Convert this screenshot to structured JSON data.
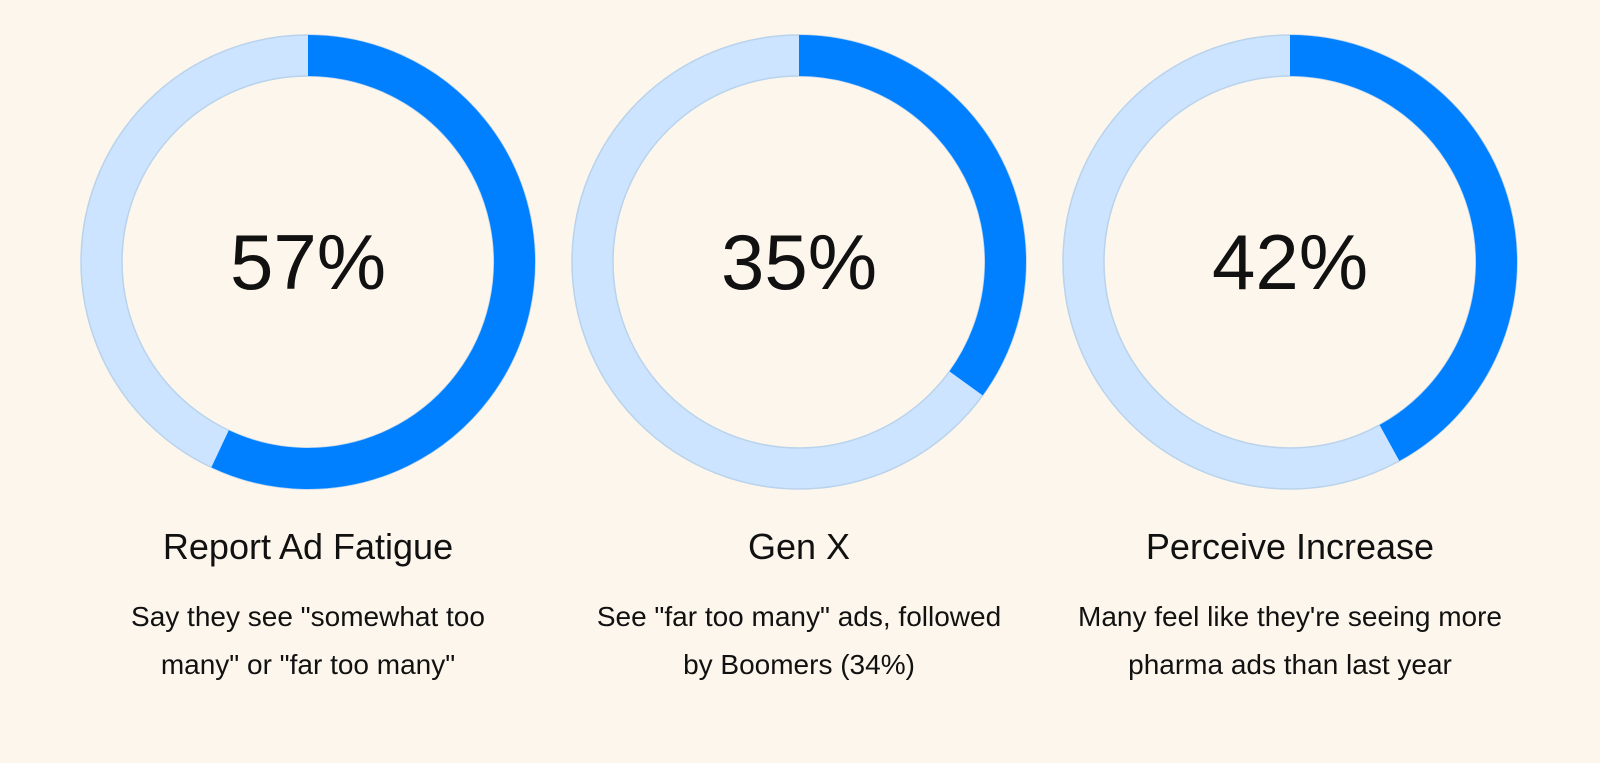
{
  "chart_data": [
    {
      "type": "donut",
      "values": [
        57
      ],
      "value_labels": [
        "57%"
      ],
      "title": "Report Ad Fatigue",
      "subtitle": "Say they see \"somewhat too many\" or \"far too many\"",
      "color": "#0080ff",
      "track_color": "#cce4ff"
    },
    {
      "type": "donut",
      "values": [
        35
      ],
      "value_labels": [
        "35%"
      ],
      "title": "Gen X",
      "subtitle": "See \"far too many\" ads, followed by Boomers (34%)",
      "color": "#0080ff",
      "track_color": "#cce4ff"
    },
    {
      "type": "donut",
      "values": [
        42
      ],
      "value_labels": [
        "42%"
      ],
      "title": "Perceive Increase",
      "subtitle": "Many feel like they're seeing more pharma ads than last year",
      "color": "#0080ff",
      "track_color": "#cce4ff"
    }
  ]
}
